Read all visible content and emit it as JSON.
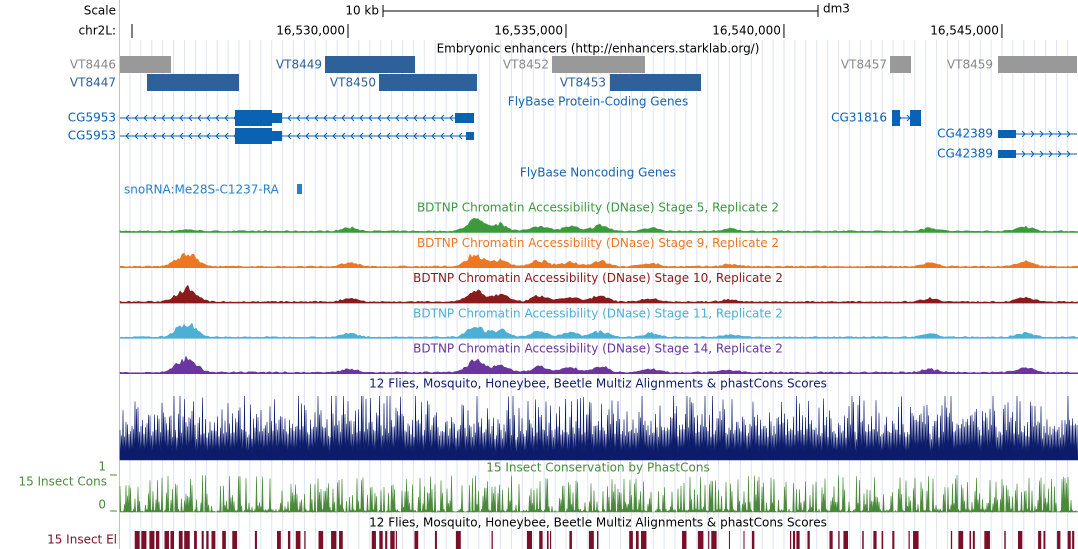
{
  "header": {
    "scale_label": "Scale",
    "scale_bar": "10 kb",
    "assembly": "dm3",
    "chrom": "chr2L:"
  },
  "ruler": {
    "xlim": [
      16524770,
      16546745
    ],
    "ticks": [
      {
        "value": 16530000,
        "label": "16,530,000"
      },
      {
        "value": 16535000,
        "label": "16,535,000"
      },
      {
        "value": 16540000,
        "label": "16,540,000"
      },
      {
        "value": 16545000,
        "label": "16,545,000"
      }
    ]
  },
  "tracks": {
    "enhancers": {
      "title": "Embryonic enhancers (http://enhancers.starklab.org/)",
      "items": [
        "VT8446",
        "VT8447",
        "VT8449",
        "VT8450",
        "VT8452",
        "VT8453",
        "VT8457",
        "VT8459"
      ]
    },
    "protein_genes": {
      "title": "FlyBase Protein-Coding Genes",
      "items": [
        "CG5953",
        "CG5953",
        "CG31816",
        "CG42389",
        "CG42389"
      ]
    },
    "noncoding": {
      "title": "FlyBase Noncoding Genes",
      "items": [
        "snoRNA:Me28S-C1237-RA"
      ]
    },
    "bdtnp": [
      {
        "title": "BDTNP Chromatin Accessibility (DNase) Stage 5, Replicate 2",
        "color": "#3c9a3c"
      },
      {
        "title": "BDTNP Chromatin Accessibility (DNase) Stage 9, Replicate 2",
        "color": "#ee7722"
      },
      {
        "title": "BDTNP Chromatin Accessibility (DNase) Stage 10, Replicate 2",
        "color": "#8b1a1a"
      },
      {
        "title": "BDTNP Chromatin Accessibility (DNase) Stage 11, Replicate 2",
        "color": "#4bafd6"
      },
      {
        "title": "BDTNP Chromatin Accessibility (DNase) Stage 14, Replicate 2",
        "color": "#6a35a0"
      }
    ],
    "multiz": {
      "title": "12 Flies, Mosquito, Honeybee, Beetle Multiz Alignments & phastCons Scores"
    },
    "phastcons": {
      "title": "15 Insect Conservation by PhastCons",
      "label": "15 Insect Cons",
      "ymax": 1,
      "ymin": 0
    },
    "elements": {
      "title": "12 Flies, Mosquito, Honeybee, Beetle Multiz Alignments & phastCons Scores",
      "label": "15 Insect El"
    }
  }
}
